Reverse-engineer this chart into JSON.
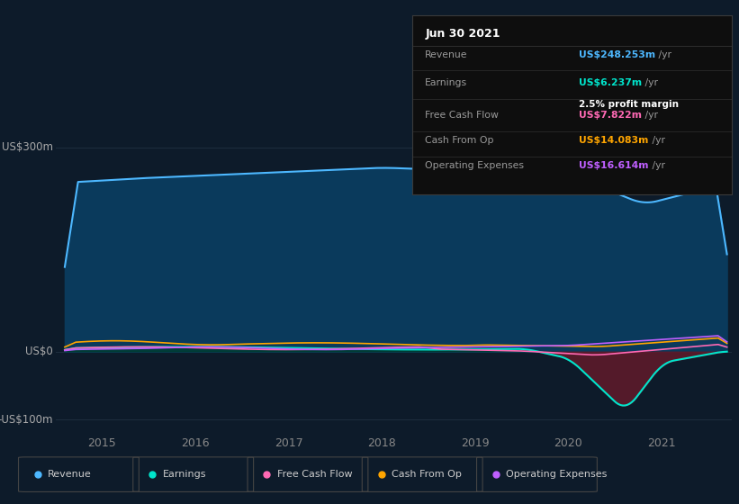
{
  "bg_color": "#0d1b2a",
  "plot_bg_color": "#0d1b2a",
  "title_date": "Jun 30 2021",
  "tooltip": {
    "Revenue": {
      "value": "US$248.253m",
      "color": "#4db8ff"
    },
    "Earnings": {
      "value": "US$6.237m",
      "color": "#00e5cc"
    },
    "profit_margin": "2.5%",
    "Free Cash Flow": {
      "value": "US$7.822m",
      "color": "#ff69b4"
    },
    "Cash From Op": {
      "value": "US$14.083m",
      "color": "#ffa500"
    },
    "Operating Expenses": {
      "value": "US$16.614m",
      "color": "#bf5fff"
    }
  },
  "revenue_color": "#4db8ff",
  "revenue_fill": "#0a3a5c",
  "earnings_color": "#00e5cc",
  "earnings_fill_pos": "#003d33",
  "earnings_fill_neg": "#5c1a2a",
  "free_cashflow_color": "#ff69b4",
  "cashfromop_color": "#ffa500",
  "opex_color": "#bf5fff",
  "legend_items": [
    {
      "label": "Revenue",
      "color": "#4db8ff"
    },
    {
      "label": "Earnings",
      "color": "#00e5cc"
    },
    {
      "label": "Free Cash Flow",
      "color": "#ff69b4"
    },
    {
      "label": "Cash From Op",
      "color": "#ffa500"
    },
    {
      "label": "Operating Expenses",
      "color": "#bf5fff"
    }
  ],
  "xticks": [
    2015,
    2016,
    2017,
    2018,
    2019,
    2020,
    2021
  ],
  "xlim": [
    2014.5,
    2021.75
  ],
  "ylim": [
    -120,
    320
  ]
}
